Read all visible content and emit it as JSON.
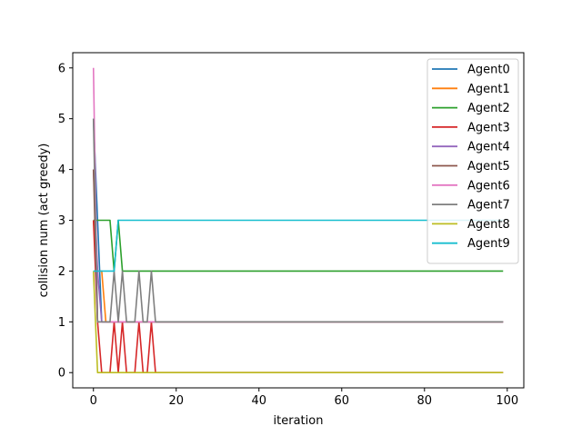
{
  "chart_data": {
    "type": "line",
    "title": "",
    "xlabel": "iteration",
    "ylabel": "collision num (act greedy)",
    "xlim": [
      -5,
      104
    ],
    "ylim": [
      -0.3,
      6.3
    ],
    "xticks": [
      0,
      20,
      40,
      60,
      80,
      100
    ],
    "yticks": [
      0,
      1,
      2,
      3,
      4,
      5,
      6
    ],
    "grid": false,
    "legend_position": "top-right",
    "x": [
      0,
      1,
      2,
      3,
      4,
      5,
      6,
      7,
      8,
      9,
      10,
      11,
      12,
      13,
      14,
      15,
      16,
      99
    ],
    "series": [
      {
        "name": "Agent0",
        "color": "#1f77b4",
        "values": [
          5,
          3,
          1,
          1,
          1,
          1,
          1,
          1,
          1,
          1,
          1,
          1,
          1,
          1,
          1,
          1,
          1,
          1
        ]
      },
      {
        "name": "Agent1",
        "color": "#ff7f0e",
        "values": [
          3,
          2,
          2,
          1,
          1,
          1,
          1,
          1,
          1,
          1,
          1,
          1,
          1,
          1,
          1,
          1,
          1,
          1
        ]
      },
      {
        "name": "Agent2",
        "color": "#2ca02c",
        "values": [
          3,
          3,
          3,
          3,
          3,
          2,
          3,
          2,
          2,
          2,
          2,
          2,
          2,
          2,
          2,
          2,
          2,
          2
        ]
      },
      {
        "name": "Agent3",
        "color": "#d62728",
        "values": [
          3,
          1,
          0,
          0,
          0,
          1,
          0,
          1,
          0,
          0,
          0,
          1,
          0,
          0,
          1,
          0,
          0,
          0
        ]
      },
      {
        "name": "Agent4",
        "color": "#9467bd",
        "values": [
          4,
          2,
          1,
          1,
          1,
          1,
          1,
          1,
          1,
          1,
          1,
          1,
          1,
          1,
          1,
          1,
          1,
          1
        ]
      },
      {
        "name": "Agent5",
        "color": "#8c564b",
        "values": [
          4,
          1,
          1,
          1,
          1,
          1,
          1,
          1,
          1,
          1,
          1,
          1,
          1,
          1,
          1,
          1,
          1,
          1
        ]
      },
      {
        "name": "Agent6",
        "color": "#e377c2",
        "values": [
          6,
          1,
          1,
          1,
          1,
          1,
          1,
          1,
          1,
          1,
          1,
          1,
          1,
          1,
          1,
          1,
          1,
          1
        ]
      },
      {
        "name": "Agent7",
        "color": "#7f7f7f",
        "values": [
          5,
          1,
          1,
          1,
          1,
          2,
          1,
          2,
          1,
          1,
          1,
          2,
          1,
          1,
          2,
          1,
          1,
          1
        ]
      },
      {
        "name": "Agent8",
        "color": "#bcbd22",
        "values": [
          2,
          0,
          0,
          0,
          0,
          0,
          0,
          0,
          0,
          0,
          0,
          0,
          0,
          0,
          0,
          0,
          0,
          0
        ]
      },
      {
        "name": "Agent9",
        "color": "#17becf",
        "values": [
          2,
          2,
          2,
          2,
          2,
          2,
          3,
          3,
          3,
          3,
          3,
          3,
          3,
          3,
          3,
          3,
          3,
          3
        ]
      }
    ]
  }
}
